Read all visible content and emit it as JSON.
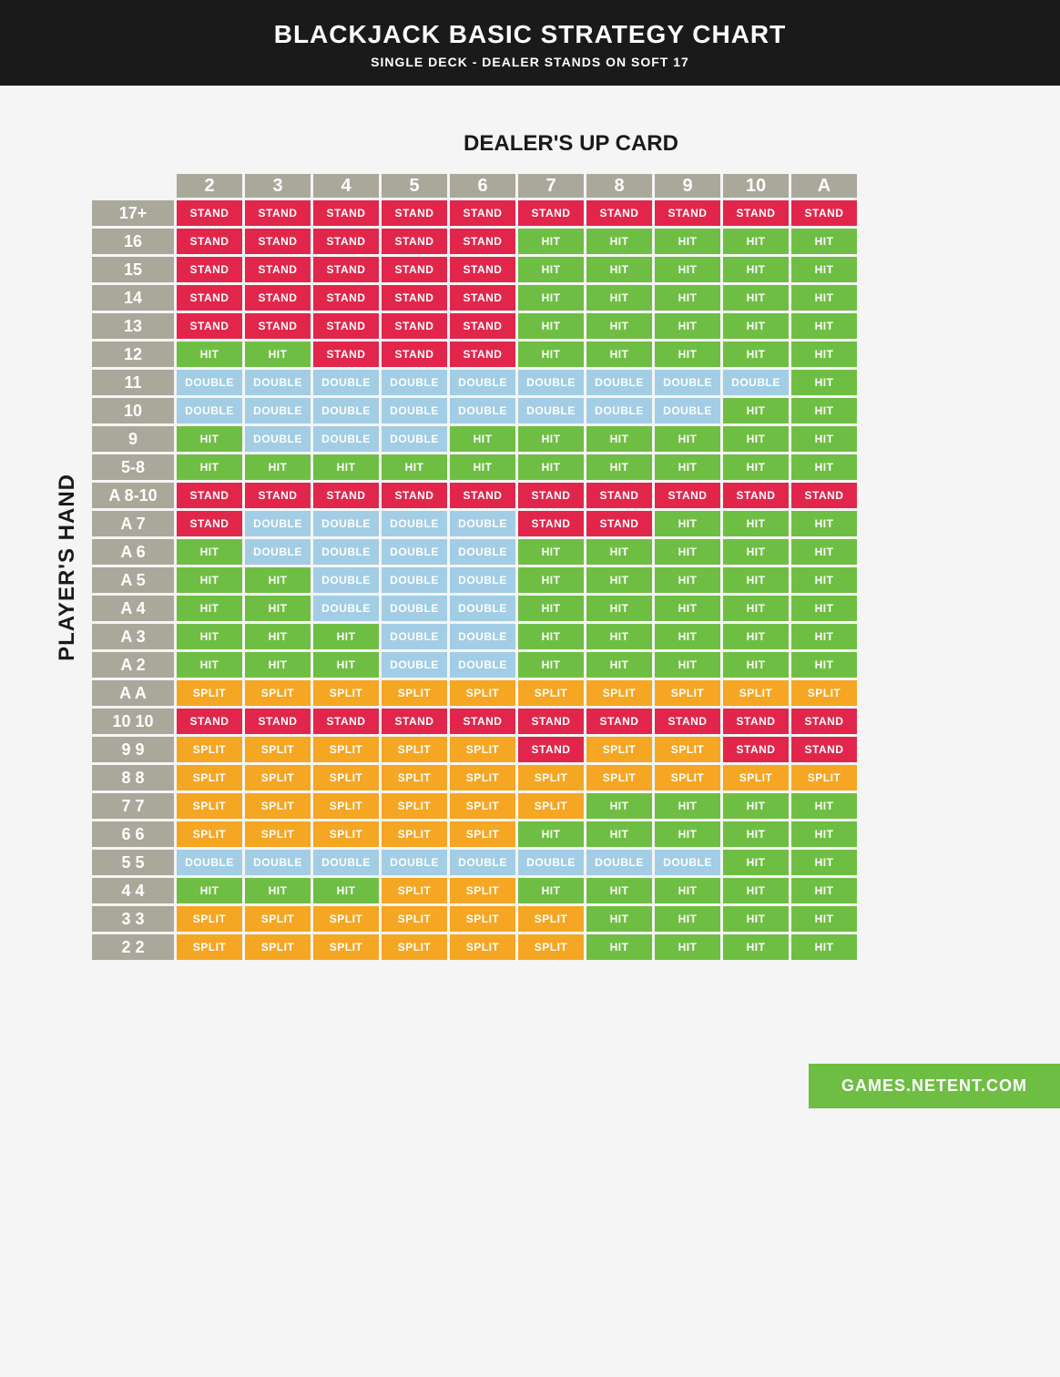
{
  "header": {
    "title": "BLACKJACK BASIC STRATEGY CHART",
    "subtitle": "SINGLE DECK - DEALER STANDS ON SOFT 17"
  },
  "labels": {
    "dealer": "DEALER'S UP CARD",
    "player": "PLAYER'S HAND"
  },
  "footer": {
    "text": "GAMES.NETENT.COM"
  },
  "colors": {
    "header_bg": "#a9a89a",
    "STAND": "#e2264b",
    "HIT": "#6fbe44",
    "DOUBLE": "#a2cde5",
    "SPLIT": "#f5a623",
    "badge": "#6fbe44"
  },
  "action_labels": {
    "STAND": "STAND",
    "HIT": "HIT",
    "DOUBLE": "DOUBLE",
    "SPLIT": "SPLIT"
  },
  "chart": {
    "type": "table",
    "columns": [
      "2",
      "3",
      "4",
      "5",
      "6",
      "7",
      "8",
      "9",
      "10",
      "A"
    ],
    "rows": [
      {
        "label": "17+",
        "cells": [
          "STAND",
          "STAND",
          "STAND",
          "STAND",
          "STAND",
          "STAND",
          "STAND",
          "STAND",
          "STAND",
          "STAND"
        ]
      },
      {
        "label": "16",
        "cells": [
          "STAND",
          "STAND",
          "STAND",
          "STAND",
          "STAND",
          "HIT",
          "HIT",
          "HIT",
          "HIT",
          "HIT"
        ]
      },
      {
        "label": "15",
        "cells": [
          "STAND",
          "STAND",
          "STAND",
          "STAND",
          "STAND",
          "HIT",
          "HIT",
          "HIT",
          "HIT",
          "HIT"
        ]
      },
      {
        "label": "14",
        "cells": [
          "STAND",
          "STAND",
          "STAND",
          "STAND",
          "STAND",
          "HIT",
          "HIT",
          "HIT",
          "HIT",
          "HIT"
        ]
      },
      {
        "label": "13",
        "cells": [
          "STAND",
          "STAND",
          "STAND",
          "STAND",
          "STAND",
          "HIT",
          "HIT",
          "HIT",
          "HIT",
          "HIT"
        ]
      },
      {
        "label": "12",
        "cells": [
          "HIT",
          "HIT",
          "STAND",
          "STAND",
          "STAND",
          "HIT",
          "HIT",
          "HIT",
          "HIT",
          "HIT"
        ]
      },
      {
        "label": "11",
        "cells": [
          "DOUBLE",
          "DOUBLE",
          "DOUBLE",
          "DOUBLE",
          "DOUBLE",
          "DOUBLE",
          "DOUBLE",
          "DOUBLE",
          "DOUBLE",
          "HIT"
        ]
      },
      {
        "label": "10",
        "cells": [
          "DOUBLE",
          "DOUBLE",
          "DOUBLE",
          "DOUBLE",
          "DOUBLE",
          "DOUBLE",
          "DOUBLE",
          "DOUBLE",
          "HIT",
          "HIT"
        ]
      },
      {
        "label": "9",
        "cells": [
          "HIT",
          "DOUBLE",
          "DOUBLE",
          "DOUBLE",
          "HIT",
          "HIT",
          "HIT",
          "HIT",
          "HIT",
          "HIT"
        ]
      },
      {
        "label": "5-8",
        "cells": [
          "HIT",
          "HIT",
          "HIT",
          "HIT",
          "HIT",
          "HIT",
          "HIT",
          "HIT",
          "HIT",
          "HIT"
        ]
      },
      {
        "label": "A 8-10",
        "cells": [
          "STAND",
          "STAND",
          "STAND",
          "STAND",
          "STAND",
          "STAND",
          "STAND",
          "STAND",
          "STAND",
          "STAND"
        ]
      },
      {
        "label": "A 7",
        "cells": [
          "STAND",
          "DOUBLE",
          "DOUBLE",
          "DOUBLE",
          "DOUBLE",
          "STAND",
          "STAND",
          "HIT",
          "HIT",
          "HIT"
        ]
      },
      {
        "label": "A 6",
        "cells": [
          "HIT",
          "DOUBLE",
          "DOUBLE",
          "DOUBLE",
          "DOUBLE",
          "HIT",
          "HIT",
          "HIT",
          "HIT",
          "HIT"
        ]
      },
      {
        "label": "A 5",
        "cells": [
          "HIT",
          "HIT",
          "DOUBLE",
          "DOUBLE",
          "DOUBLE",
          "HIT",
          "HIT",
          "HIT",
          "HIT",
          "HIT"
        ]
      },
      {
        "label": "A 4",
        "cells": [
          "HIT",
          "HIT",
          "DOUBLE",
          "DOUBLE",
          "DOUBLE",
          "HIT",
          "HIT",
          "HIT",
          "HIT",
          "HIT"
        ]
      },
      {
        "label": "A 3",
        "cells": [
          "HIT",
          "HIT",
          "HIT",
          "DOUBLE",
          "DOUBLE",
          "HIT",
          "HIT",
          "HIT",
          "HIT",
          "HIT"
        ]
      },
      {
        "label": "A 2",
        "cells": [
          "HIT",
          "HIT",
          "HIT",
          "DOUBLE",
          "DOUBLE",
          "HIT",
          "HIT",
          "HIT",
          "HIT",
          "HIT"
        ]
      },
      {
        "label": "A A",
        "cells": [
          "SPLIT",
          "SPLIT",
          "SPLIT",
          "SPLIT",
          "SPLIT",
          "SPLIT",
          "SPLIT",
          "SPLIT",
          "SPLIT",
          "SPLIT"
        ]
      },
      {
        "label": "10 10",
        "cells": [
          "STAND",
          "STAND",
          "STAND",
          "STAND",
          "STAND",
          "STAND",
          "STAND",
          "STAND",
          "STAND",
          "STAND"
        ]
      },
      {
        "label": "9 9",
        "cells": [
          "SPLIT",
          "SPLIT",
          "SPLIT",
          "SPLIT",
          "SPLIT",
          "STAND",
          "SPLIT",
          "SPLIT",
          "STAND",
          "STAND"
        ]
      },
      {
        "label": "8 8",
        "cells": [
          "SPLIT",
          "SPLIT",
          "SPLIT",
          "SPLIT",
          "SPLIT",
          "SPLIT",
          "SPLIT",
          "SPLIT",
          "SPLIT",
          "SPLIT"
        ]
      },
      {
        "label": "7 7",
        "cells": [
          "SPLIT",
          "SPLIT",
          "SPLIT",
          "SPLIT",
          "SPLIT",
          "SPLIT",
          "HIT",
          "HIT",
          "HIT",
          "HIT"
        ]
      },
      {
        "label": "6 6",
        "cells": [
          "SPLIT",
          "SPLIT",
          "SPLIT",
          "SPLIT",
          "SPLIT",
          "HIT",
          "HIT",
          "HIT",
          "HIT",
          "HIT"
        ]
      },
      {
        "label": "5 5",
        "cells": [
          "DOUBLE",
          "DOUBLE",
          "DOUBLE",
          "DOUBLE",
          "DOUBLE",
          "DOUBLE",
          "DOUBLE",
          "DOUBLE",
          "HIT",
          "HIT"
        ]
      },
      {
        "label": "4 4",
        "cells": [
          "HIT",
          "HIT",
          "HIT",
          "SPLIT",
          "SPLIT",
          "HIT",
          "HIT",
          "HIT",
          "HIT",
          "HIT"
        ]
      },
      {
        "label": "3 3",
        "cells": [
          "SPLIT",
          "SPLIT",
          "SPLIT",
          "SPLIT",
          "SPLIT",
          "SPLIT",
          "HIT",
          "HIT",
          "HIT",
          "HIT"
        ]
      },
      {
        "label": "2 2",
        "cells": [
          "SPLIT",
          "SPLIT",
          "SPLIT",
          "SPLIT",
          "SPLIT",
          "SPLIT",
          "HIT",
          "HIT",
          "HIT",
          "HIT"
        ]
      }
    ]
  }
}
